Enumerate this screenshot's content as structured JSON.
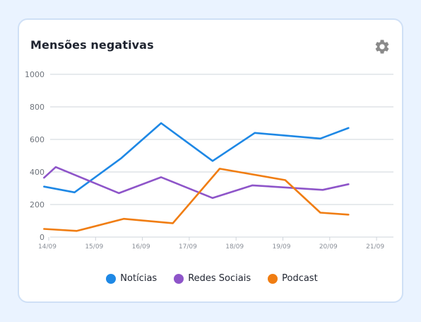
{
  "title": "Mensões negativas",
  "settings_icon": "gear-icon",
  "colors": {
    "noticias": "#1e88e5",
    "redes_sociais": "#8e55c9",
    "podcast": "#f07d12",
    "grid": "#cfd4db",
    "axis_text": "#8a8f98",
    "settings": "#8a8a8a"
  },
  "chart_data": {
    "type": "line",
    "title": "Mensões negativas",
    "xlabel": "",
    "ylabel": "",
    "ylim": [
      0,
      1000
    ],
    "yticks": [
      0,
      200,
      400,
      600,
      800,
      1000
    ],
    "x_tick_labels": [
      "14/09",
      "15/09",
      "16/09",
      "17/09",
      "18/09",
      "19/09",
      "20/09",
      "21/09"
    ],
    "grid": true,
    "legend_position": "bottom",
    "series": [
      {
        "name": "Notícias",
        "color_key": "noticias",
        "points": [
          [
            -0.1,
            310
          ],
          [
            0.55,
            275
          ],
          [
            1.55,
            485
          ],
          [
            2.4,
            700
          ],
          [
            3.5,
            468
          ],
          [
            4.4,
            640
          ],
          [
            5.8,
            605
          ],
          [
            6.4,
            670
          ]
        ]
      },
      {
        "name": "Redes Sociais",
        "color_key": "redes_sociais",
        "points": [
          [
            -0.1,
            365
          ],
          [
            0.15,
            430
          ],
          [
            1.5,
            270
          ],
          [
            2.4,
            368
          ],
          [
            3.5,
            240
          ],
          [
            4.35,
            318
          ],
          [
            5.85,
            290
          ],
          [
            6.4,
            325
          ]
        ]
      },
      {
        "name": "Podcast",
        "color_key": "podcast",
        "points": [
          [
            -0.1,
            50
          ],
          [
            0.6,
            38
          ],
          [
            1.6,
            112
          ],
          [
            2.65,
            85
          ],
          [
            3.65,
            420
          ],
          [
            5.05,
            350
          ],
          [
            5.8,
            150
          ],
          [
            6.4,
            138
          ]
        ]
      }
    ]
  },
  "legend": [
    {
      "label": "Notícias",
      "color_key": "noticias"
    },
    {
      "label": "Redes Sociais",
      "color_key": "redes_sociais"
    },
    {
      "label": "Podcast",
      "color_key": "podcast"
    }
  ]
}
